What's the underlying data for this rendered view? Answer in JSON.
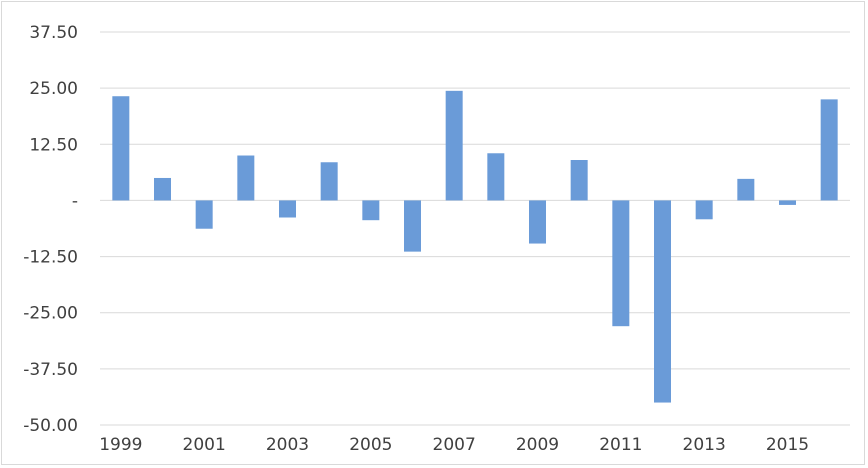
{
  "chart_data": {
    "type": "bar",
    "title": "",
    "xlabel": "",
    "ylabel": "",
    "ylim": [
      -50,
      37.5
    ],
    "yticks": [
      37.5,
      25,
      12.5,
      0,
      -12.5,
      -25,
      -37.5,
      -50
    ],
    "ytick_labels": [
      "37.50",
      "25.00",
      "12.50",
      "-",
      "-12.50",
      "-25.00",
      "-37.50",
      "-50.00"
    ],
    "categories": [
      "1999",
      "2000",
      "2001",
      "2002",
      "2003",
      "2004",
      "2005",
      "2006",
      "2007",
      "2008",
      "2009",
      "2010",
      "2011",
      "2012",
      "2013",
      "2014",
      "2015",
      "2016"
    ],
    "xtick_labels": [
      "1999",
      "",
      "2001",
      "",
      "2003",
      "",
      "2005",
      "",
      "2007",
      "",
      "2009",
      "",
      "2011",
      "",
      "2013",
      "",
      "2015",
      ""
    ],
    "values": [
      23.2,
      5.0,
      -6.3,
      10.0,
      -3.8,
      8.5,
      -4.4,
      -11.4,
      24.4,
      10.5,
      -9.6,
      9.0,
      -28.0,
      -45.0,
      -4.2,
      4.8,
      -1.0,
      22.5
    ],
    "grid": true,
    "legend": "none",
    "bar_color": "#6a9bd8",
    "grid_color": "#d9d9d9"
  }
}
